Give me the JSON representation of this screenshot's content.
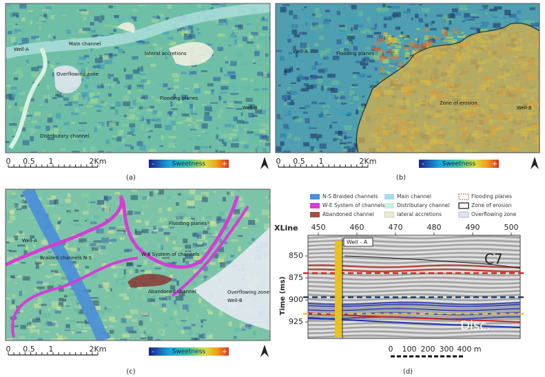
{
  "panels": [
    {
      "label": "(a)",
      "annotations": [
        "Well-A",
        "Main channel",
        "lateral accretions",
        "Overflowing zone",
        "Flooding planes",
        "Well-B",
        "Distributary channel"
      ],
      "scale": [
        "0",
        "0.5",
        "1",
        "2Km"
      ],
      "colorbar": {
        "title": "Sweetness",
        "low": "-",
        "high": "+"
      }
    },
    {
      "label": "(b)",
      "annotations": [
        "Well-A",
        "Flooding planes",
        "Zone of erosion",
        "Well-B"
      ],
      "scale": [
        "0",
        "0.5",
        "1",
        "2Km"
      ],
      "colorbar": {
        "title": "Sweetness",
        "low": "-",
        "high": "+"
      }
    },
    {
      "label": "(c)",
      "annotations": [
        "Well-A",
        "Flooding planes",
        "Braided channels N-S",
        "W-E System of channels",
        "Abandoned channel",
        "Overflowing zone",
        "Well-B"
      ],
      "scale": [
        "0",
        "0.5",
        "1",
        "2Km"
      ],
      "colorbar": {
        "title": "Sweetness",
        "low": "-",
        "high": "+"
      }
    },
    {
      "label": "(d)",
      "legend": [
        "N-S Braided channels",
        "W-E System of channels",
        "Abandoned channel",
        "Main channel",
        "Distributary channel",
        "lateral accretions",
        "Flooding planes",
        "Zone of erosion",
        "Overflowing zone"
      ],
      "annotations": [
        "Well - A",
        "C7",
        "Disc."
      ],
      "x_axis_title": "XLine",
      "x_ticks": [
        "450",
        "460",
        "470",
        "480",
        "490",
        "500"
      ],
      "y_axis_title": "Time (ms)",
      "y_ticks": [
        "850",
        "875",
        "900",
        "925"
      ],
      "scale": [
        "0",
        "100",
        "200",
        "300",
        "400 m"
      ]
    }
  ]
}
